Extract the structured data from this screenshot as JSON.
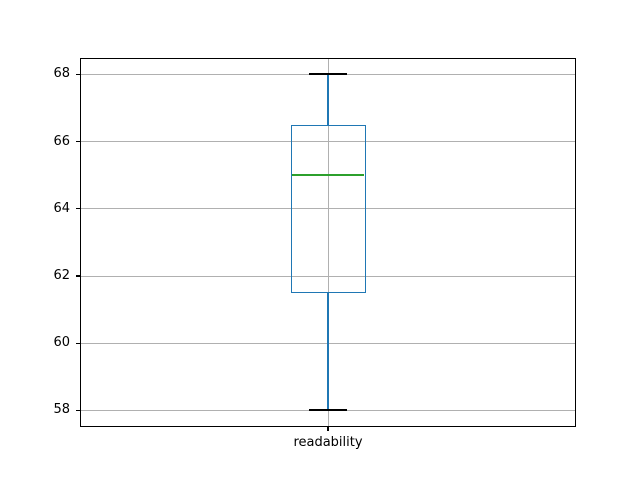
{
  "figure": {
    "background": "#ffffff",
    "title": ""
  },
  "chart_data": {
    "type": "boxplot",
    "orientation": "vertical",
    "title": "",
    "xlabel": "",
    "ylabel": "",
    "categories": [
      "readability"
    ],
    "series": [
      {
        "name": "readability",
        "min": 58,
        "q1": 61.5,
        "median": 65,
        "q3": 66.5,
        "max": 68,
        "outliers": []
      }
    ],
    "yticks": [
      58,
      60,
      62,
      64,
      66,
      68
    ],
    "ylim": [
      57.5,
      68.5
    ],
    "grid": true,
    "legend": "none",
    "colors": {
      "box": "#1f77b4",
      "whisker": "#1f77b4",
      "cap": "#000000",
      "median": "#2ca02c",
      "grid": "#b0b0b0",
      "frame": "#000000",
      "text": "#000000"
    }
  }
}
